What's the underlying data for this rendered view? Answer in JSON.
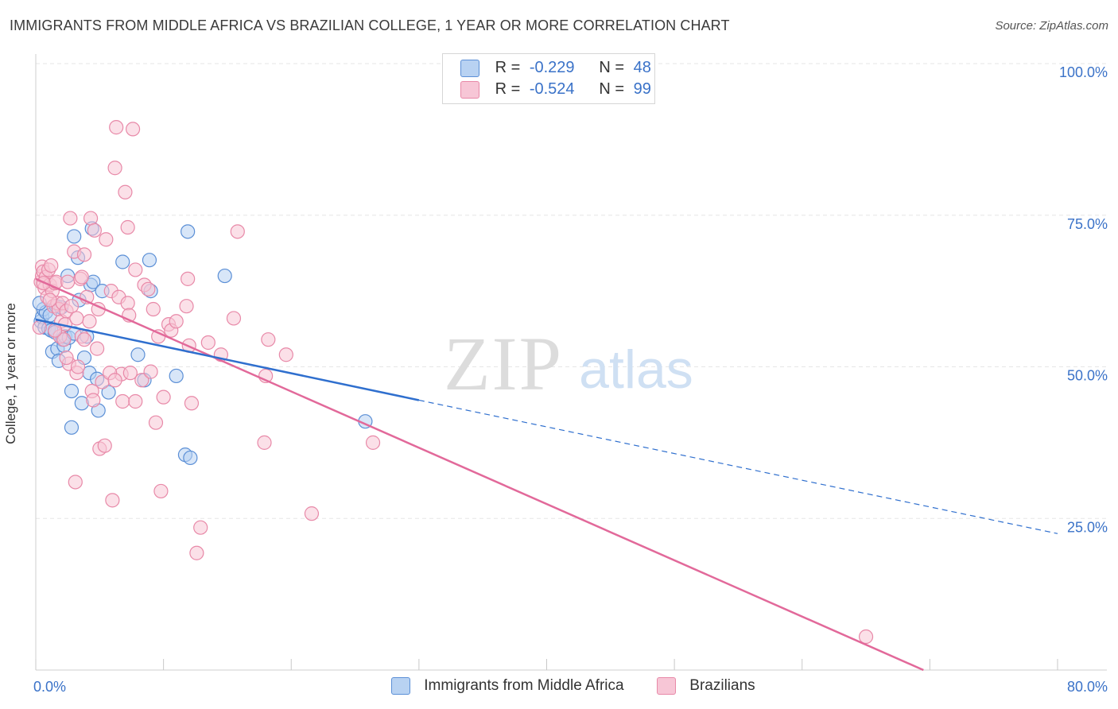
{
  "title": "IMMIGRANTS FROM MIDDLE AFRICA VS BRAZILIAN COLLEGE, 1 YEAR OR MORE CORRELATION CHART",
  "source": "Source: ZipAtlas.com",
  "watermark": {
    "zip": "ZIP",
    "atlas": "atlas"
  },
  "legend_top": [
    {
      "r_label": "R =",
      "r_value": "-0.229",
      "n_label": "N =",
      "n_value": "48"
    },
    {
      "r_label": "R =",
      "r_value": "-0.524",
      "n_label": "N =",
      "n_value": "99"
    }
  ],
  "colors": {
    "blue_fill": "#b8d2f2",
    "blue_stroke": "#5b8fd6",
    "blue_line": "#2f6fce",
    "pink_fill": "#f7c6d6",
    "pink_stroke": "#e889a8",
    "pink_line": "#e2699a",
    "tick_label": "#3a72c8",
    "grid": "#e6e6e6"
  },
  "chart_data": {
    "type": "scatter",
    "title": "IMMIGRANTS FROM MIDDLE AFRICA VS BRAZILIAN COLLEGE, 1 YEAR OR MORE CORRELATION CHART",
    "xlabel": "",
    "ylabel": "College, 1 year or more",
    "xlim": [
      0,
      80
    ],
    "ylim": [
      0,
      100
    ],
    "x_tick_labels": [
      "0.0%",
      "80.0%"
    ],
    "y_ticks": [
      25,
      50,
      75,
      100
    ],
    "y_tick_labels": [
      "25.0%",
      "50.0%",
      "75.0%",
      "100.0%"
    ],
    "grid": true,
    "legend_position": "bottom",
    "series": [
      {
        "name": "Immigrants from Middle Africa",
        "color": "#5b8fd6",
        "points": [
          [
            0.4,
            57.5
          ],
          [
            0.5,
            58.2
          ],
          [
            0.6,
            59.5
          ],
          [
            0.7,
            56.5
          ],
          [
            0.8,
            59.0
          ],
          [
            1.0,
            56.3
          ],
          [
            1.1,
            58.5
          ],
          [
            1.2,
            56.0
          ],
          [
            1.3,
            52.5
          ],
          [
            1.5,
            55.7
          ],
          [
            1.6,
            60.0
          ],
          [
            1.7,
            53.0
          ],
          [
            1.8,
            51.0
          ],
          [
            2.0,
            59.8
          ],
          [
            2.1,
            54.5
          ],
          [
            2.2,
            53.5
          ],
          [
            2.3,
            55.0
          ],
          [
            2.5,
            65.0
          ],
          [
            2.6,
            54.8
          ],
          [
            2.8,
            46.0
          ],
          [
            3.0,
            55.5
          ],
          [
            3.0,
            71.5
          ],
          [
            3.3,
            68.0
          ],
          [
            3.4,
            61.0
          ],
          [
            3.6,
            44.0
          ],
          [
            3.8,
            51.5
          ],
          [
            4.0,
            55.0
          ],
          [
            4.2,
            49.0
          ],
          [
            4.3,
            63.5
          ],
          [
            4.4,
            72.8
          ],
          [
            4.5,
            64.0
          ],
          [
            4.8,
            48.0
          ],
          [
            4.9,
            42.8
          ],
          [
            5.2,
            62.5
          ],
          [
            5.7,
            45.8
          ],
          [
            6.8,
            67.3
          ],
          [
            8.0,
            52.0
          ],
          [
            8.5,
            47.8
          ],
          [
            8.9,
            67.6
          ],
          [
            9.0,
            62.5
          ],
          [
            11.0,
            48.5
          ],
          [
            11.7,
            35.5
          ],
          [
            11.9,
            72.3
          ],
          [
            12.1,
            35.0
          ],
          [
            14.8,
            65.0
          ],
          [
            25.8,
            41.0
          ],
          [
            2.8,
            40.0
          ],
          [
            0.3,
            60.5
          ]
        ]
      },
      {
        "name": "Brazilians",
        "color": "#e889a8",
        "points": [
          [
            0.3,
            56.5
          ],
          [
            0.4,
            64.0
          ],
          [
            0.5,
            65.0
          ],
          [
            0.5,
            66.5
          ],
          [
            0.6,
            65.7
          ],
          [
            0.7,
            63.0
          ],
          [
            0.8,
            64.8
          ],
          [
            0.9,
            61.5
          ],
          [
            1.0,
            66.0
          ],
          [
            1.1,
            63.5
          ],
          [
            1.2,
            66.7
          ],
          [
            1.3,
            62.5
          ],
          [
            1.4,
            60.0
          ],
          [
            1.5,
            63.8
          ],
          [
            1.6,
            64.0
          ],
          [
            1.7,
            60.5
          ],
          [
            1.8,
            59.5
          ],
          [
            1.9,
            55.0
          ],
          [
            2.0,
            57.5
          ],
          [
            2.1,
            60.5
          ],
          [
            2.2,
            54.5
          ],
          [
            2.3,
            57.0
          ],
          [
            2.4,
            59.2
          ],
          [
            2.5,
            64.0
          ],
          [
            2.6,
            50.5
          ],
          [
            2.7,
            74.5
          ],
          [
            2.8,
            60.0
          ],
          [
            3.0,
            69.0
          ],
          [
            3.1,
            31.0
          ],
          [
            3.2,
            49.0
          ],
          [
            3.3,
            50.0
          ],
          [
            3.5,
            64.5
          ],
          [
            3.6,
            55.0
          ],
          [
            3.8,
            54.5
          ],
          [
            3.8,
            68.5
          ],
          [
            4.0,
            61.5
          ],
          [
            4.2,
            57.5
          ],
          [
            4.3,
            74.5
          ],
          [
            4.4,
            46.0
          ],
          [
            4.5,
            44.5
          ],
          [
            4.6,
            72.5
          ],
          [
            4.8,
            53.0
          ],
          [
            4.9,
            59.5
          ],
          [
            5.0,
            36.5
          ],
          [
            5.2,
            47.5
          ],
          [
            5.4,
            37.0
          ],
          [
            5.5,
            71.0
          ],
          [
            5.9,
            62.5
          ],
          [
            6.0,
            28.0
          ],
          [
            6.2,
            82.8
          ],
          [
            6.3,
            89.5
          ],
          [
            6.5,
            61.5
          ],
          [
            6.7,
            48.8
          ],
          [
            6.8,
            44.3
          ],
          [
            7.0,
            78.8
          ],
          [
            7.2,
            60.5
          ],
          [
            7.2,
            73.0
          ],
          [
            7.3,
            58.5
          ],
          [
            7.4,
            49.0
          ],
          [
            7.6,
            89.2
          ],
          [
            7.8,
            44.3
          ],
          [
            7.8,
            66.0
          ],
          [
            8.3,
            47.8
          ],
          [
            8.5,
            63.5
          ],
          [
            8.8,
            62.8
          ],
          [
            9.0,
            49.2
          ],
          [
            9.2,
            59.5
          ],
          [
            9.4,
            40.8
          ],
          [
            9.6,
            55.0
          ],
          [
            9.8,
            29.5
          ],
          [
            10.0,
            45.0
          ],
          [
            10.4,
            57.0
          ],
          [
            10.6,
            56.0
          ],
          [
            11.0,
            57.5
          ],
          [
            11.8,
            60.0
          ],
          [
            11.9,
            64.5
          ],
          [
            12.0,
            53.5
          ],
          [
            12.2,
            44.0
          ],
          [
            12.6,
            19.3
          ],
          [
            12.9,
            23.5
          ],
          [
            13.5,
            54.0
          ],
          [
            14.5,
            52.0
          ],
          [
            15.5,
            58.0
          ],
          [
            15.8,
            72.3
          ],
          [
            17.9,
            37.5
          ],
          [
            18.0,
            48.5
          ],
          [
            18.2,
            54.5
          ],
          [
            19.6,
            52.0
          ],
          [
            21.6,
            25.8
          ],
          [
            26.4,
            37.5
          ],
          [
            65.0,
            5.5
          ],
          [
            0.6,
            63.8
          ],
          [
            1.1,
            61.0
          ],
          [
            1.5,
            56.0
          ],
          [
            2.4,
            51.5
          ],
          [
            3.6,
            64.8
          ],
          [
            5.8,
            49.0
          ],
          [
            6.2,
            47.8
          ],
          [
            3.2,
            58.0
          ]
        ]
      }
    ],
    "trend_lines": [
      {
        "series": "Immigrants from Middle Africa",
        "solid": [
          [
            0,
            57.8
          ],
          [
            30,
            44.5
          ]
        ],
        "dashed": [
          [
            30,
            44.5
          ],
          [
            80,
            22.5
          ]
        ]
      },
      {
        "series": "Brazilians",
        "solid": [
          [
            0,
            64.5
          ],
          [
            69.5,
            0
          ]
        ]
      }
    ]
  }
}
